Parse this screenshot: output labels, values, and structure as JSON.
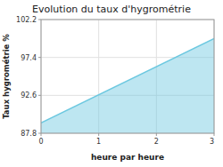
{
  "chart_data": {
    "type": "area",
    "title": "Evolution du taux d'hygrométrie",
    "xlabel": "heure par heure",
    "ylabel": "Taux hygrométrie %",
    "x": [
      0,
      3
    ],
    "values": [
      89.1,
      99.8
    ],
    "color": "#6cc8e0",
    "xlim": [
      0,
      3
    ],
    "ylim": [
      87.8,
      102.2
    ],
    "xticks": [
      0,
      1,
      2,
      3
    ],
    "yticks": [
      87.8,
      92.6,
      97.4,
      102.2
    ],
    "grid": true
  }
}
